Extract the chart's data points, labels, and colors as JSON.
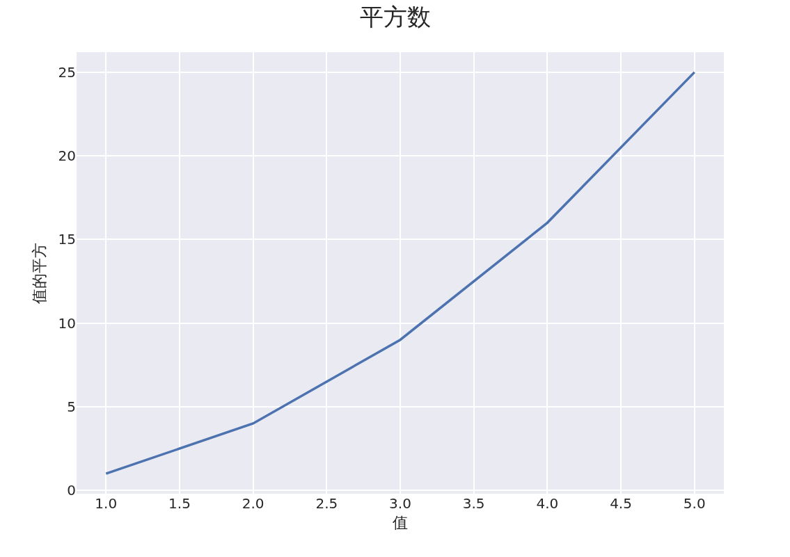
{
  "chart_data": {
    "type": "line",
    "title": "平方数",
    "xlabel": "值",
    "ylabel": "值的平方",
    "x": [
      1,
      2,
      3,
      4,
      5
    ],
    "series": [
      {
        "color": "#4c72b0",
        "values": [
          1,
          4,
          9,
          16,
          25
        ]
      }
    ],
    "xlim": [
      0.8,
      5.2
    ],
    "xticks": [
      {
        "value": 1,
        "label": "1.0"
      },
      1.5,
      {
        "value": 2,
        "label": "2.0"
      },
      2.5,
      {
        "value": 3,
        "label": "3.0"
      },
      3.5,
      {
        "value": 4,
        "label": "4.0"
      },
      4.5,
      {
        "value": 5,
        "label": "5.0"
      }
    ],
    "ylim": [
      -0.2,
      26.2
    ],
    "yticks": [
      0,
      5,
      10,
      15,
      20,
      25
    ],
    "grid": true,
    "marker": "none",
    "line_style": "solid"
  }
}
